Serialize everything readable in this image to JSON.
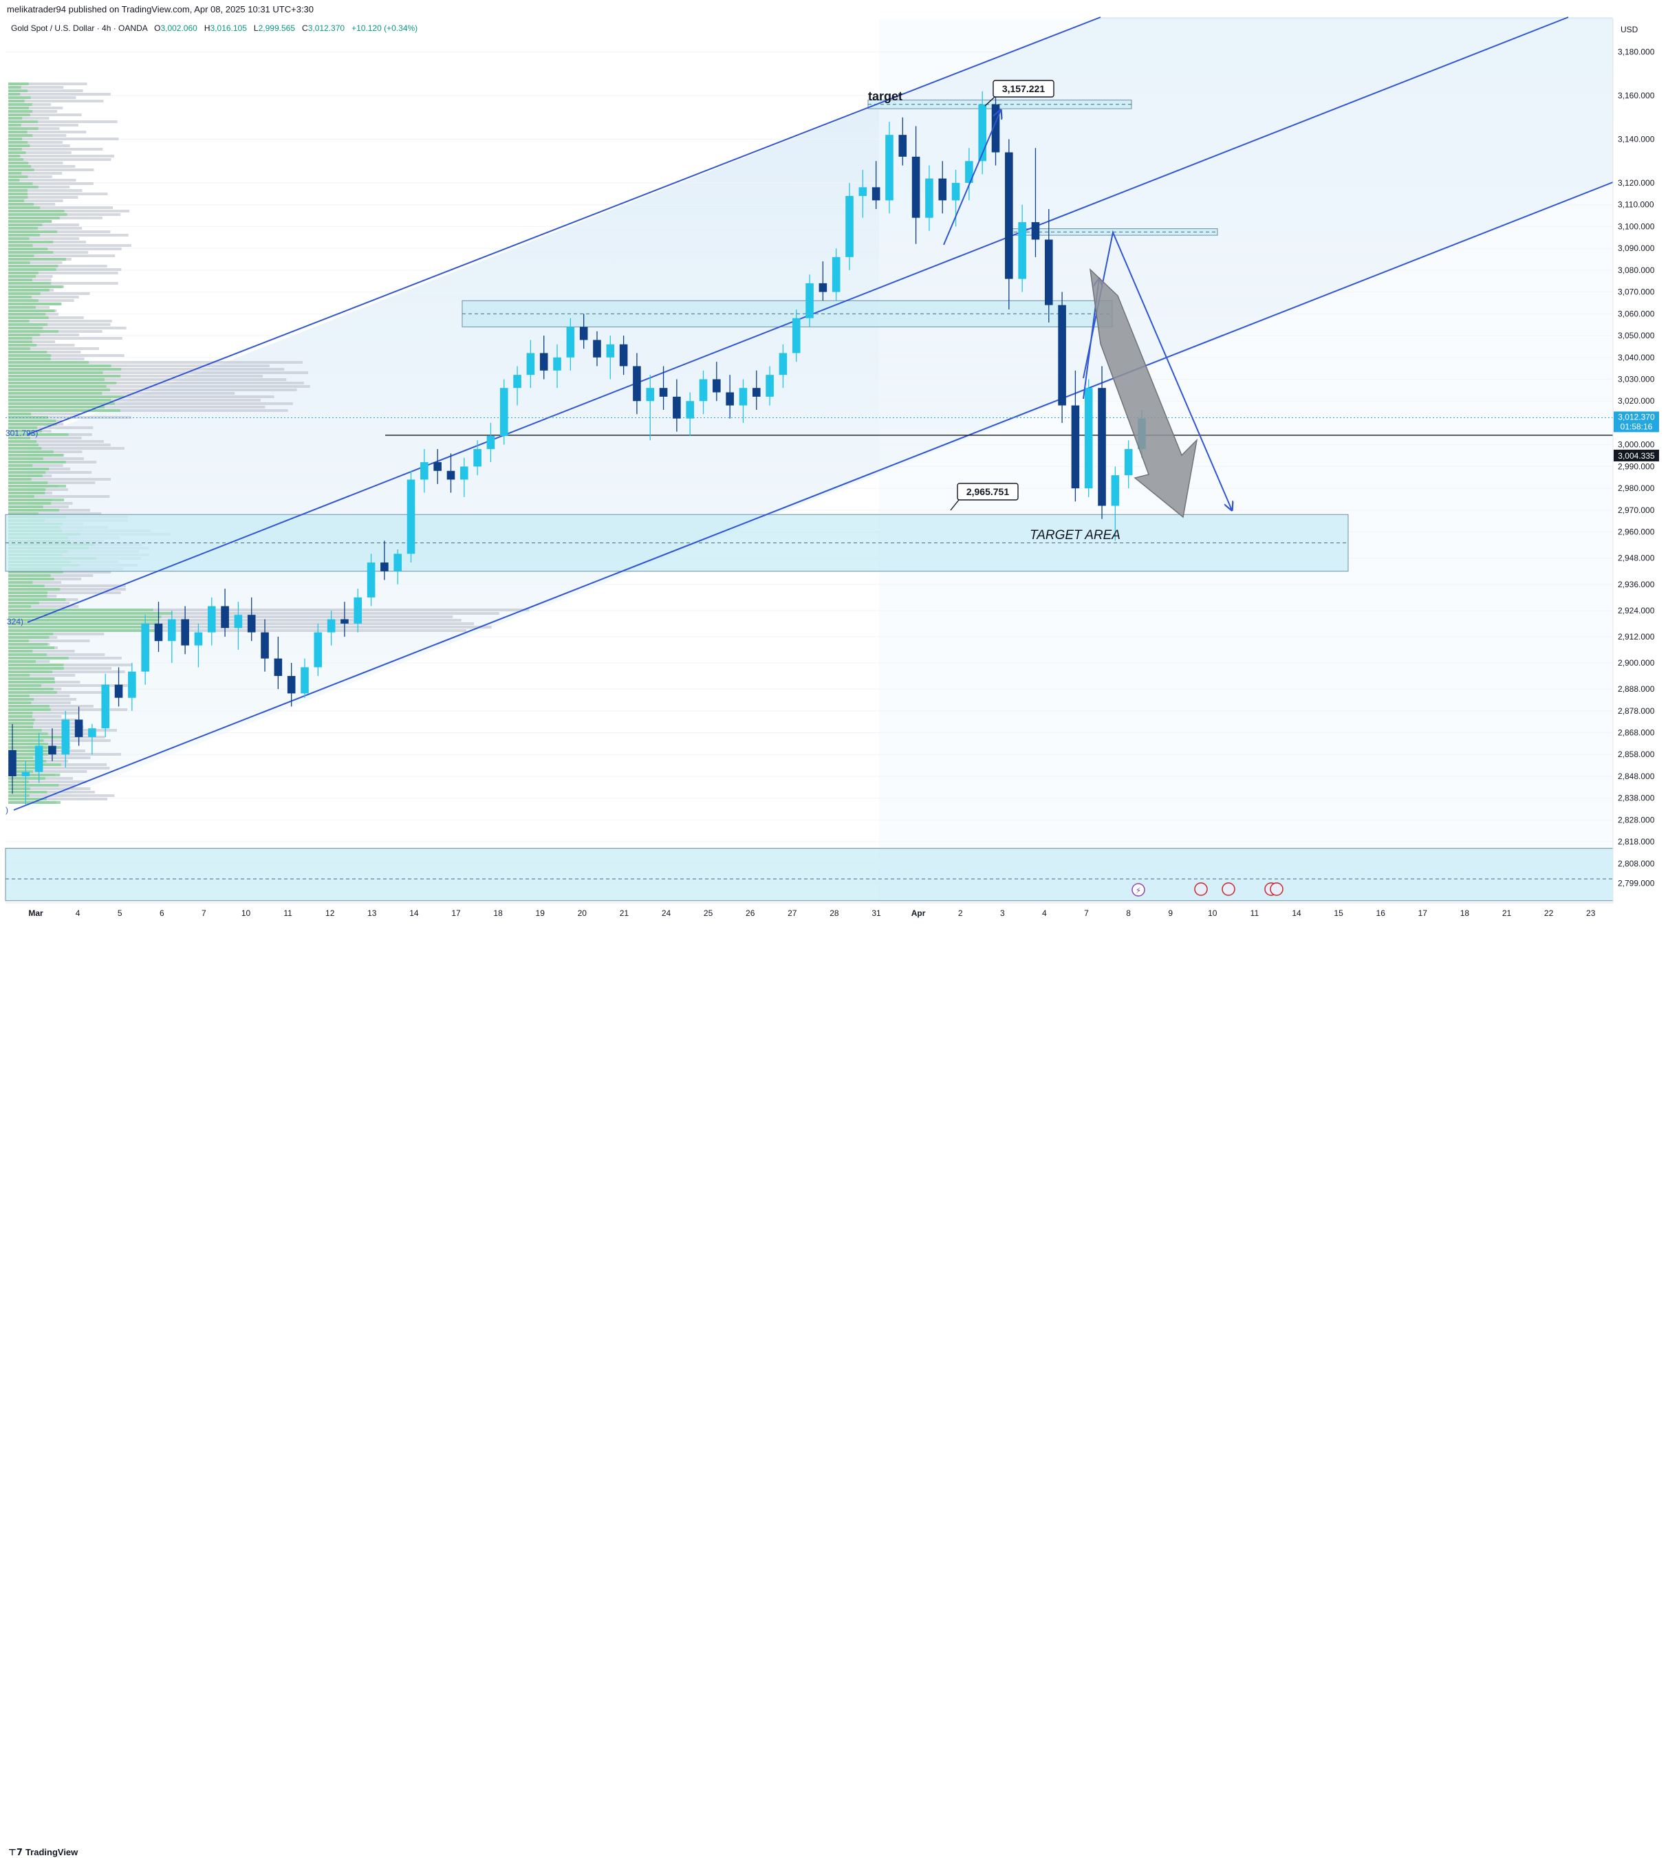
{
  "header": {
    "published": "melikatrader94 published on TradingView.com, Apr 08, 2025 10:31 UTC+3:30"
  },
  "symbol": {
    "name": "Gold Spot / U.S. Dollar · 4h · OANDA",
    "o_label": "O",
    "o": "3,002.060",
    "h_label": "H",
    "h": "3,016.105",
    "l_label": "L",
    "l": "2,999.565",
    "c_label": "C",
    "c": "3,012.370",
    "change": "+10.120 (+0.34%)"
  },
  "footer": {
    "brand": "TradingView"
  },
  "colors": {
    "up": "#22c4e8",
    "down": "#0f3f86",
    "channel": "#2f55d6",
    "zone": "#c8ecf5",
    "zone_border": "#6c8fa8",
    "profile_green": "#7fcf8f",
    "profile_gray": "#c3c7d1"
  },
  "chart_data": {
    "type": "candlestick",
    "currency_label": "USD",
    "ylim": [
      2790,
      3195
    ],
    "y_ticks": [
      "3,180.000",
      "3,160.000",
      "3,140.000",
      "3,120.000",
      "3,110.000",
      "3,100.000",
      "3,090.000",
      "3,080.000",
      "3,070.000",
      "3,060.000",
      "3,050.000",
      "3,040.000",
      "3,030.000",
      "3,020.000",
      "3,000.000",
      "2,990.000",
      "2,980.000",
      "2,970.000",
      "2,960.000",
      "2,948.000",
      "2,936.000",
      "2,924.000",
      "2,912.000",
      "2,900.000",
      "2,888.000",
      "2,878.000",
      "2,868.000",
      "2,858.000",
      "2,848.000",
      "2,838.000",
      "2,828.000",
      "2,818.000",
      "2,808.000",
      "2,799.000"
    ],
    "y_tick_values": [
      3180,
      3160,
      3140,
      3120,
      3110,
      3100,
      3090,
      3080,
      3070,
      3060,
      3050,
      3040,
      3030,
      3020,
      3000,
      2990,
      2980,
      2970,
      2960,
      2948,
      2936,
      2924,
      2912,
      2900,
      2888,
      2878,
      2868,
      2858,
      2848,
      2838,
      2828,
      2818,
      2808,
      2799
    ],
    "x_ticks": [
      "Mar",
      "4",
      "5",
      "6",
      "7",
      "10",
      "11",
      "12",
      "13",
      "14",
      "17",
      "18",
      "19",
      "20",
      "21",
      "24",
      "25",
      "26",
      "27",
      "28",
      "31",
      "Apr",
      "2",
      "3",
      "4",
      "7",
      "8",
      "9",
      "10",
      "11",
      "14",
      "15",
      "16",
      "17",
      "18",
      "21",
      "22",
      "23"
    ],
    "current_price": {
      "price": "3,012.370",
      "countdown": "01:58:16",
      "value": 3012.37
    },
    "reference_line": {
      "label": "3,004.335",
      "value": 3004.335
    },
    "left_labels": [
      "301.793)",
      "324)",
      ")"
    ],
    "annotations": {
      "target_label": "target",
      "top_price": "3,157.221",
      "low_price": "2,965.751",
      "target_area": "TARGET AREA"
    },
    "zones": [
      {
        "from": 2942,
        "to": 2968,
        "mid": 2955
      },
      {
        "from": 3054,
        "to": 3066,
        "mid": 3060
      },
      {
        "from": 3096,
        "to": 3099,
        "mid": 3097.5
      },
      {
        "from": 3154,
        "to": 3158,
        "mid": 3156
      },
      {
        "from": 2791,
        "to": 2815,
        "mid": 2801
      }
    ],
    "candles": [
      [
        2860,
        2872,
        2840,
        2848
      ],
      [
        2848,
        2855,
        2835,
        2850
      ],
      [
        2850,
        2868,
        2845,
        2862
      ],
      [
        2862,
        2870,
        2855,
        2858
      ],
      [
        2858,
        2878,
        2852,
        2874
      ],
      [
        2874,
        2880,
        2862,
        2866
      ],
      [
        2866,
        2872,
        2858,
        2870
      ],
      [
        2870,
        2895,
        2866,
        2890
      ],
      [
        2890,
        2898,
        2880,
        2884
      ],
      [
        2884,
        2900,
        2878,
        2896
      ],
      [
        2896,
        2922,
        2890,
        2918
      ],
      [
        2918,
        2928,
        2905,
        2910
      ],
      [
        2910,
        2924,
        2900,
        2920
      ],
      [
        2920,
        2926,
        2904,
        2908
      ],
      [
        2908,
        2918,
        2898,
        2914
      ],
      [
        2914,
        2930,
        2908,
        2926
      ],
      [
        2926,
        2934,
        2912,
        2916
      ],
      [
        2916,
        2928,
        2906,
        2922
      ],
      [
        2922,
        2930,
        2910,
        2914
      ],
      [
        2914,
        2920,
        2896,
        2902
      ],
      [
        2902,
        2912,
        2888,
        2894
      ],
      [
        2894,
        2900,
        2880,
        2886
      ],
      [
        2886,
        2902,
        2884,
        2898
      ],
      [
        2898,
        2918,
        2894,
        2914
      ],
      [
        2914,
        2924,
        2908,
        2920
      ],
      [
        2920,
        2928,
        2912,
        2918
      ],
      [
        2918,
        2934,
        2914,
        2930
      ],
      [
        2930,
        2950,
        2926,
        2946
      ],
      [
        2946,
        2956,
        2938,
        2942
      ],
      [
        2942,
        2952,
        2936,
        2950
      ],
      [
        2950,
        2988,
        2946,
        2984
      ],
      [
        2984,
        2998,
        2978,
        2992
      ],
      [
        2992,
        2998,
        2982,
        2988
      ],
      [
        2988,
        2996,
        2978,
        2984
      ],
      [
        2984,
        2994,
        2976,
        2990
      ],
      [
        2990,
        3002,
        2986,
        2998
      ],
      [
        2998,
        3010,
        2992,
        3004
      ],
      [
        3004,
        3030,
        3000,
        3026
      ],
      [
        3026,
        3036,
        3018,
        3032
      ],
      [
        3032,
        3048,
        3026,
        3042
      ],
      [
        3042,
        3050,
        3030,
        3034
      ],
      [
        3034,
        3046,
        3026,
        3040
      ],
      [
        3040,
        3058,
        3034,
        3054
      ],
      [
        3054,
        3060,
        3044,
        3048
      ],
      [
        3048,
        3052,
        3036,
        3040
      ],
      [
        3040,
        3050,
        3030,
        3046
      ],
      [
        3046,
        3050,
        3032,
        3036
      ],
      [
        3036,
        3042,
        3014,
        3020
      ],
      [
        3020,
        3032,
        3002,
        3026
      ],
      [
        3026,
        3036,
        3016,
        3022
      ],
      [
        3022,
        3030,
        3006,
        3012
      ],
      [
        3012,
        3024,
        3004,
        3020
      ],
      [
        3020,
        3034,
        3014,
        3030
      ],
      [
        3030,
        3038,
        3020,
        3024
      ],
      [
        3024,
        3032,
        3012,
        3018
      ],
      [
        3018,
        3030,
        3010,
        3026
      ],
      [
        3026,
        3034,
        3016,
        3022
      ],
      [
        3022,
        3036,
        3018,
        3032
      ],
      [
        3032,
        3046,
        3026,
        3042
      ],
      [
        3042,
        3062,
        3038,
        3058
      ],
      [
        3058,
        3078,
        3054,
        3074
      ],
      [
        3074,
        3084,
        3066,
        3070
      ],
      [
        3070,
        3090,
        3066,
        3086
      ],
      [
        3086,
        3120,
        3080,
        3114
      ],
      [
        3114,
        3126,
        3104,
        3118
      ],
      [
        3118,
        3130,
        3108,
        3112
      ],
      [
        3112,
        3148,
        3106,
        3142
      ],
      [
        3142,
        3150,
        3128,
        3132
      ],
      [
        3132,
        3146,
        3092,
        3104
      ],
      [
        3104,
        3128,
        3098,
        3122
      ],
      [
        3122,
        3130,
        3106,
        3112
      ],
      [
        3112,
        3126,
        3100,
        3120
      ],
      [
        3120,
        3136,
        3112,
        3130
      ],
      [
        3130,
        3162,
        3124,
        3156
      ],
      [
        3156,
        3160,
        3128,
        3134
      ],
      [
        3134,
        3140,
        3062,
        3076
      ],
      [
        3076,
        3110,
        3070,
        3102
      ],
      [
        3102,
        3136,
        3086,
        3094
      ],
      [
        3094,
        3108,
        3056,
        3064
      ],
      [
        3064,
        3070,
        3010,
        3018
      ],
      [
        3018,
        3034,
        2974,
        2980
      ],
      [
        2980,
        3030,
        2976,
        3026
      ],
      [
        3026,
        3036,
        2966,
        2972
      ],
      [
        2972,
        2990,
        2956,
        2986
      ],
      [
        2986,
        3002,
        2980,
        2998
      ],
      [
        2998,
        3016,
        2994,
        3012
      ]
    ]
  }
}
